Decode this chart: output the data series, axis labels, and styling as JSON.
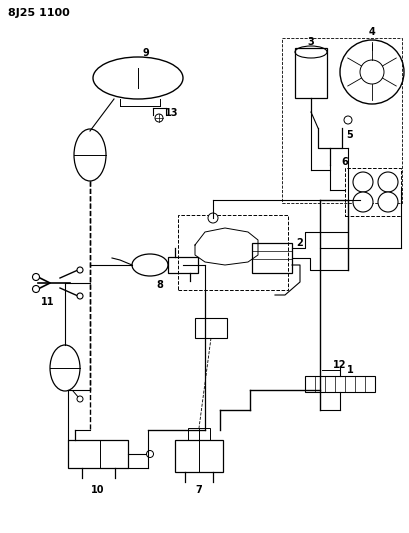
{
  "title": "8J25 1100",
  "bg_color": "#ffffff",
  "fg_color": "#000000",
  "fig_width": 4.09,
  "fig_height": 5.33,
  "dpi": 100
}
